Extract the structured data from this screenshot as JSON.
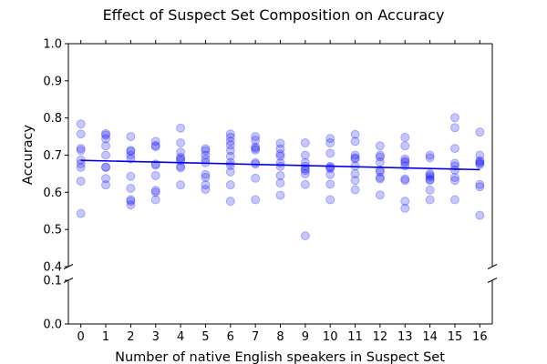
{
  "chart_data": {
    "type": "scatter",
    "title": "Effect of Suspect Set Composition on Accuracy",
    "xlabel": "Number of native English speakers in Suspect Set",
    "ylabel": "Accuracy",
    "x_ticks": [
      "0",
      "1",
      "2",
      "3",
      "4",
      "5",
      "6",
      "7",
      "8",
      "9",
      "10",
      "11",
      "12",
      "13",
      "14",
      "15",
      "16"
    ],
    "y_ticks_upper": [
      "0.4",
      "0.5",
      "0.6",
      "0.7",
      "0.8",
      "0.9",
      "1.0"
    ],
    "y_ticks_lower": [
      "0.0",
      "0.1"
    ],
    "ylim_upper": [
      0.4,
      1.0
    ],
    "ylim_lower": [
      0.0,
      0.1
    ],
    "xlim": [
      -0.5,
      16.5
    ],
    "axis_break": true,
    "grid": false,
    "point_color": "#0000ff",
    "point_alpha": 0.22,
    "line_color": "#0000ee",
    "trend_line": {
      "x": [
        0,
        16
      ],
      "y": [
        0.686,
        0.661
      ]
    },
    "points": [
      {
        "x": 0,
        "y": [
          0.784,
          0.757,
          0.718,
          0.713,
          0.687,
          0.677,
          0.667,
          0.63,
          0.543
        ]
      },
      {
        "x": 1,
        "y": [
          0.758,
          0.754,
          0.744,
          0.725,
          0.7,
          0.668,
          0.667,
          0.637,
          0.62
        ]
      },
      {
        "x": 2,
        "y": [
          0.75,
          0.713,
          0.71,
          0.7,
          0.69,
          0.643,
          0.611,
          0.58,
          0.576,
          0.566
        ]
      },
      {
        "x": 3,
        "y": [
          0.737,
          0.726,
          0.723,
          0.676,
          0.673,
          0.645,
          0.605,
          0.6,
          0.58
        ]
      },
      {
        "x": 4,
        "y": [
          0.773,
          0.733,
          0.708,
          0.694,
          0.69,
          0.685,
          0.67,
          0.666,
          0.62
        ]
      },
      {
        "x": 5,
        "y": [
          0.717,
          0.712,
          0.7,
          0.689,
          0.68,
          0.648,
          0.64,
          0.62,
          0.608
        ]
      },
      {
        "x": 6,
        "y": [
          0.757,
          0.748,
          0.737,
          0.727,
          0.713,
          0.697,
          0.68,
          0.672,
          0.655,
          0.62,
          0.576
        ]
      },
      {
        "x": 7,
        "y": [
          0.75,
          0.74,
          0.722,
          0.718,
          0.714,
          0.68,
          0.676,
          0.638,
          0.58
        ]
      },
      {
        "x": 8,
        "y": [
          0.732,
          0.717,
          0.703,
          0.697,
          0.679,
          0.67,
          0.645,
          0.625,
          0.592
        ]
      },
      {
        "x": 9,
        "y": [
          0.733,
          0.7,
          0.68,
          0.67,
          0.663,
          0.659,
          0.65,
          0.621,
          0.483
        ]
      },
      {
        "x": 10,
        "y": [
          0.745,
          0.733,
          0.705,
          0.67,
          0.667,
          0.664,
          0.648,
          0.622,
          0.58
        ]
      },
      {
        "x": 11,
        "y": [
          0.756,
          0.737,
          0.7,
          0.693,
          0.69,
          0.671,
          0.65,
          0.632,
          0.607
        ]
      },
      {
        "x": 12,
        "y": [
          0.725,
          0.7,
          0.695,
          0.681,
          0.66,
          0.655,
          0.64,
          0.636,
          0.593
        ]
      },
      {
        "x": 13,
        "y": [
          0.748,
          0.725,
          0.69,
          0.684,
          0.68,
          0.671,
          0.636,
          0.632,
          0.576,
          0.557
        ]
      },
      {
        "x": 14,
        "y": [
          0.7,
          0.693,
          0.65,
          0.646,
          0.641,
          0.635,
          0.632,
          0.606,
          0.58
        ]
      },
      {
        "x": 15,
        "y": [
          0.801,
          0.774,
          0.718,
          0.678,
          0.671,
          0.66,
          0.64,
          0.632,
          0.58
        ]
      },
      {
        "x": 16,
        "y": [
          0.762,
          0.7,
          0.685,
          0.682,
          0.678,
          0.675,
          0.621,
          0.615,
          0.538
        ]
      }
    ]
  }
}
